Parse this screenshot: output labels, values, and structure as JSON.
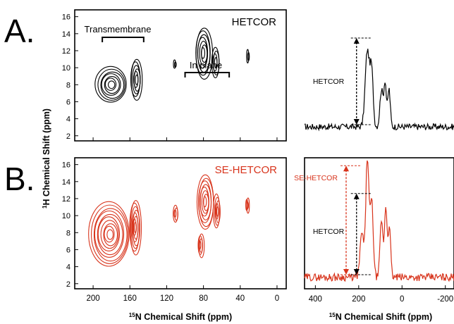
{
  "figure": {
    "panel_labels": [
      "A.",
      "B."
    ],
    "ylabel_sup": "1",
    "ylabel": "H Chemical Shift (ppm)",
    "xlabel_left_sup": "15",
    "xlabel_left": "N Chemical Shift (ppm)",
    "xlabel_right_sup": "15",
    "xlabel_right": "N Chemical Shift (ppm)"
  },
  "colors": {
    "panelA": "#000000",
    "panelB": "#d8341c"
  },
  "chart_data": [
    {
      "type": "contour",
      "panel": "A",
      "title": "HETCOR",
      "xlim": [
        220,
        -10
      ],
      "ylim": [
        16.8,
        1.4
      ],
      "xticks": [
        200,
        160,
        120,
        80,
        40,
        0
      ],
      "yticks": [
        2,
        4,
        6,
        8,
        10,
        12,
        14,
        16
      ],
      "annotations": [
        {
          "text": "Transmembrane",
          "x_range": [
            190,
            145
          ]
        },
        {
          "text": "In plane",
          "x_range": [
            100,
            52
          ]
        }
      ],
      "peaks": [
        {
          "x": 180,
          "y": 8.0,
          "rx": 17,
          "ry": 2.1,
          "rings": 7
        },
        {
          "x": 153,
          "y": 8.6,
          "rx": 6,
          "ry": 2.4,
          "rings": 6
        },
        {
          "x": 111,
          "y": 10.4,
          "rx": 1.2,
          "ry": 0.5,
          "rings": 2
        },
        {
          "x": 80,
          "y": 11.7,
          "rx": 9,
          "ry": 3.0,
          "rings": 7
        },
        {
          "x": 67,
          "y": 10.6,
          "rx": 4,
          "ry": 1.8,
          "rings": 4
        },
        {
          "x": 31,
          "y": 11.3,
          "rx": 1.2,
          "ry": 0.8,
          "rings": 2
        }
      ]
    },
    {
      "type": "contour",
      "panel": "B",
      "title": "SE-HETCOR",
      "xlim": [
        220,
        -10
      ],
      "ylim": [
        16.8,
        1.4
      ],
      "xticks": [
        200,
        160,
        120,
        80,
        40,
        0
      ],
      "xtick_labels": [
        "200",
        "160",
        "120",
        "80",
        "40",
        "0"
      ],
      "yticks": [
        2,
        4,
        6,
        8,
        10,
        12,
        14,
        16
      ],
      "ytick_labels": [
        "2",
        "4",
        "6",
        "8",
        "10",
        "12",
        "14",
        "16"
      ],
      "peaks": [
        {
          "x": 182,
          "y": 7.8,
          "rx": 22,
          "ry": 3.8,
          "rings": 10
        },
        {
          "x": 154,
          "y": 8.6,
          "rx": 6,
          "ry": 3.2,
          "rings": 8
        },
        {
          "x": 110,
          "y": 10.2,
          "rx": 2.5,
          "ry": 1.0,
          "rings": 3
        },
        {
          "x": 83,
          "y": 6.5,
          "rx": 3,
          "ry": 1.4,
          "rings": 4
        },
        {
          "x": 78,
          "y": 11.6,
          "rx": 9,
          "ry": 3.2,
          "rings": 8
        },
        {
          "x": 65,
          "y": 10.5,
          "rx": 3.5,
          "ry": 2.0,
          "rings": 5
        },
        {
          "x": 32,
          "y": 11.2,
          "rx": 1.5,
          "ry": 0.9,
          "rings": 3
        }
      ]
    },
    {
      "type": "line",
      "panel": "A-right",
      "xlim": [
        450,
        -240
      ],
      "ylim": [
        0,
        1
      ],
      "annotations": [
        {
          "text": "HETCOR",
          "arrow_x": 210,
          "arrow_y_top": 0.92,
          "arrow_y_bottom": 0.1
        }
      ],
      "peaks": [
        {
          "x": 160,
          "h": 0.72,
          "w": 14
        },
        {
          "x": 140,
          "h": 0.5,
          "w": 10
        },
        {
          "x": 95,
          "h": 0.35,
          "w": 10
        },
        {
          "x": 78,
          "h": 0.42,
          "w": 8
        },
        {
          "x": 60,
          "h": 0.36,
          "w": 8
        }
      ],
      "baseline": 0.08
    },
    {
      "type": "line",
      "panel": "B-right",
      "xlim": [
        450,
        -240
      ],
      "ylim": [
        0,
        1
      ],
      "xticks": [
        400,
        200,
        0,
        -200
      ],
      "xtick_labels": [
        "400",
        "200",
        "0",
        "-200"
      ],
      "annotations": [
        {
          "text": "SE-HETCOR",
          "arrow_x": 258,
          "arrow_y_top": 0.96,
          "arrow_y_bottom": 0.1
        },
        {
          "text": "HETCOR",
          "arrow_x": 210,
          "arrow_y_top": 0.74,
          "arrow_y_bottom": 0.1
        }
      ],
      "peaks": [
        {
          "x": 185,
          "h": 0.35,
          "w": 12
        },
        {
          "x": 160,
          "h": 0.95,
          "w": 10
        },
        {
          "x": 140,
          "h": 0.6,
          "w": 10
        },
        {
          "x": 95,
          "h": 0.45,
          "w": 9
        },
        {
          "x": 75,
          "h": 0.55,
          "w": 9
        },
        {
          "x": 58,
          "h": 0.38,
          "w": 8
        }
      ],
      "baseline": 0.08
    }
  ]
}
